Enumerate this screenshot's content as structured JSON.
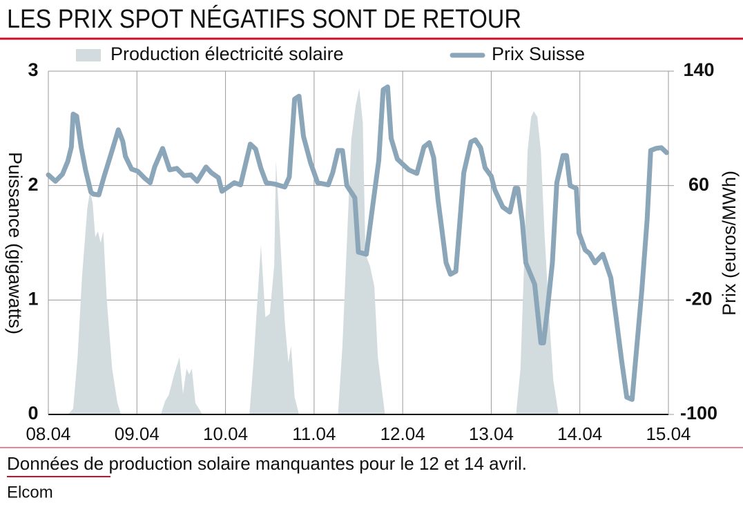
{
  "chart_data": {
    "type": "area_line",
    "title": "LES PRIX SPOT NÉGATIFS SONT DE RETOUR",
    "y_label": "Puissance (gigawatts)",
    "y2_label": "Prix (euros/MWh)",
    "note": "Données de production solaire manquantes pour le 12 et 14 avril.",
    "source": "Elcom",
    "legend": "top",
    "grid": true,
    "xlim": [
      0,
      7
    ],
    "xticks": [
      {
        "value": 0,
        "label": "08.04"
      },
      {
        "value": 1,
        "label": "09.04"
      },
      {
        "value": 2,
        "label": "10.04"
      },
      {
        "value": 3,
        "label": "11.04"
      },
      {
        "value": 4,
        "label": "12.04"
      },
      {
        "value": 5,
        "label": "13.04"
      },
      {
        "value": 6,
        "label": "14.04"
      },
      {
        "value": 7,
        "label": "15.04"
      }
    ],
    "ylim": [
      0,
      3
    ],
    "yticks": [
      0,
      1,
      2,
      3
    ],
    "y2lim": [
      -100,
      140
    ],
    "y2ticks": [
      -100,
      -20,
      60,
      140
    ],
    "series": [
      {
        "name": "Production électricité solaire",
        "kind": "area",
        "color": "#d2dbde",
        "x": [
          0,
          0.22,
          0.28,
          0.33,
          0.38,
          0.44,
          0.47,
          0.5,
          0.53,
          0.56,
          0.59,
          0.62,
          0.66,
          0.72,
          0.78,
          0.82,
          1.27,
          1.32,
          1.36,
          1.42,
          1.48,
          1.52,
          1.56,
          1.59,
          1.62,
          1.66,
          1.74,
          2.27,
          2.32,
          2.36,
          2.4,
          2.45,
          2.5,
          2.55,
          2.57,
          2.62,
          2.67,
          2.71,
          2.74,
          2.78,
          2.83,
          3.27,
          3.32,
          3.37,
          3.42,
          3.47,
          3.51,
          3.55,
          3.58,
          3.63,
          3.68,
          3.72,
          3.8,
          5.28,
          5.33,
          5.37,
          5.41,
          5.45,
          5.48,
          5.52,
          5.56,
          5.6,
          5.65,
          5.7,
          5.76,
          7
        ],
        "values": [
          0,
          0,
          0.05,
          0.5,
          1.2,
          1.8,
          1.95,
          1.85,
          1.55,
          1.6,
          1.5,
          1.6,
          1.0,
          0.4,
          0.1,
          0,
          0,
          0.12,
          0.17,
          0.35,
          0.5,
          0.18,
          0.4,
          0.35,
          0.4,
          0.1,
          0,
          0,
          0.5,
          1.0,
          1.48,
          0.85,
          0.88,
          1.3,
          2.22,
          1.5,
          0.8,
          0.45,
          0.6,
          0.15,
          0,
          0,
          0.6,
          1.5,
          2.4,
          2.7,
          2.85,
          2.55,
          1.4,
          1.3,
          1.12,
          0.5,
          0,
          0,
          0.4,
          1.3,
          2.3,
          2.6,
          2.65,
          2.6,
          2.3,
          1.6,
          0.9,
          0.3,
          0,
          0
        ]
      },
      {
        "name": "Prix Suisse",
        "kind": "line",
        "axis": "y2",
        "color": "#8ca6b9",
        "x": [
          0,
          0.08,
          0.16,
          0.22,
          0.26,
          0.28,
          0.32,
          0.37,
          0.42,
          0.48,
          0.51,
          0.57,
          0.63,
          0.71,
          0.79,
          0.84,
          0.87,
          0.94,
          1.01,
          1.09,
          1.15,
          1.2,
          1.29,
          1.37,
          1.45,
          1.53,
          1.61,
          1.68,
          1.78,
          1.84,
          1.92,
          1.96,
          2.03,
          2.1,
          2.17,
          2.28,
          2.34,
          2.4,
          2.46,
          2.56,
          2.67,
          2.72,
          2.78,
          2.83,
          2.88,
          2.96,
          3.04,
          3.16,
          3.21,
          3.27,
          3.32,
          3.37,
          3.46,
          3.5,
          3.59,
          3.66,
          3.73,
          3.78,
          3.83,
          3.87,
          3.94,
          4.07,
          4.16,
          4.24,
          4.3,
          4.35,
          4.4,
          4.44,
          4.49,
          4.54,
          4.6,
          4.69,
          4.77,
          4.82,
          4.88,
          4.93,
          5.0,
          5.04,
          5.13,
          5.21,
          5.27,
          5.3,
          5.35,
          5.39,
          5.44,
          5.49,
          5.56,
          5.59,
          5.63,
          5.69,
          5.74,
          5.81,
          5.85,
          5.89,
          5.96,
          5.99,
          6.06,
          6.11,
          6.17,
          6.26,
          6.35,
          6.41,
          6.47,
          6.53,
          6.59,
          6.7,
          6.76,
          6.8,
          6.86,
          6.92,
          6.98
        ],
        "values": [
          67.5,
          63,
          68,
          77,
          87,
          110,
          108.5,
          87,
          71,
          55.5,
          54,
          53.5,
          66.5,
          82.5,
          99,
          91,
          80.5,
          71.5,
          70,
          65,
          62,
          73,
          86,
          71,
          72,
          67,
          67.5,
          63,
          73,
          69,
          65.5,
          56,
          59,
          62,
          60.5,
          89,
          85.5,
          72,
          62,
          61,
          59,
          66,
          120.5,
          122.5,
          94.5,
          76,
          62,
          60.5,
          69,
          84.5,
          84.5,
          60,
          51.5,
          13.5,
          12,
          45,
          77.5,
          127,
          129,
          93,
          78.5,
          71,
          68.5,
          87,
          90,
          79.5,
          49.5,
          30.5,
          6,
          -2,
          0,
          69,
          90.5,
          92,
          86.5,
          72.5,
          66.5,
          57,
          45,
          41.5,
          58,
          58,
          35,
          6,
          -1.5,
          -9,
          -50,
          -50,
          -29,
          6,
          62,
          81,
          81,
          60,
          58,
          27,
          15,
          12.5,
          6,
          12,
          -4.5,
          -32.5,
          -61.5,
          -88,
          -89.5,
          -13,
          36.5,
          84.5,
          86,
          86.5,
          83
        ]
      }
    ]
  }
}
